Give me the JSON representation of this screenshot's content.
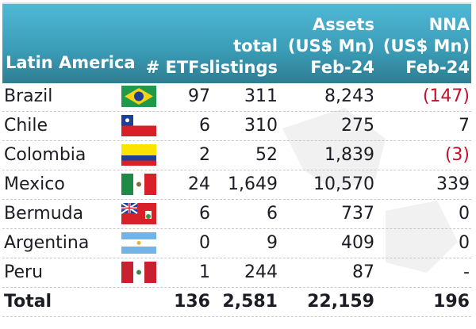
{
  "header": {
    "region": "Latin America",
    "etfs": "# ETFs",
    "listings": "total\nlistings",
    "assets": "Assets\n(US$ Mn)\nFeb-24",
    "nna": "NNA\n(US$ Mn)\nFeb-24"
  },
  "rows": [
    {
      "country": "Brazil",
      "flag": "brazil-flag",
      "etfs": "97",
      "listings": "311",
      "assets": "8,243",
      "nna": "(147)"
    },
    {
      "country": "Chile",
      "flag": "chile-flag",
      "etfs": "6",
      "listings": "310",
      "assets": "275",
      "nna": "7"
    },
    {
      "country": "Colombia",
      "flag": "colombia-flag",
      "etfs": "2",
      "listings": "52",
      "assets": "1,839",
      "nna": "(3)"
    },
    {
      "country": "Mexico",
      "flag": "mexico-flag",
      "etfs": "24",
      "listings": "1,649",
      "assets": "10,570",
      "nna": "339"
    },
    {
      "country": "Bermuda",
      "flag": "bermuda-flag",
      "etfs": "6",
      "listings": "6",
      "assets": "737",
      "nna": "0"
    },
    {
      "country": "Argentina",
      "flag": "argentina-flag",
      "etfs": "0",
      "listings": "9",
      "assets": "409",
      "nna": "0"
    },
    {
      "country": "Peru",
      "flag": "peru-flag",
      "etfs": "1",
      "listings": "244",
      "assets": "87",
      "nna": "-"
    }
  ],
  "total": {
    "label": "Total",
    "etfs": "136",
    "listings": "2,581",
    "assets": "22,159",
    "nna": "196"
  },
  "colors": {
    "header_top": "#4fb9d6",
    "header_bottom": "#2f7d91",
    "negative": "#c0102a"
  }
}
